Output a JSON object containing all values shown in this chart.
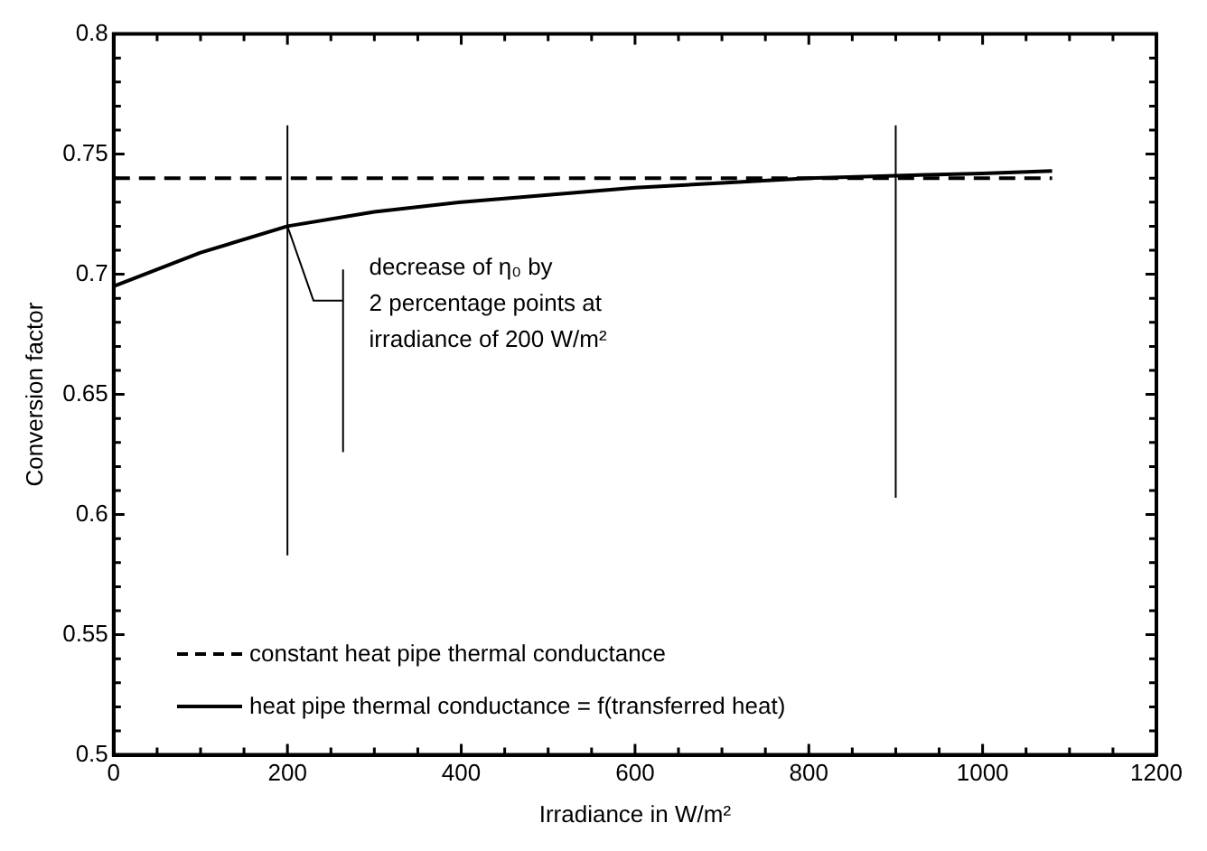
{
  "chart_data": {
    "type": "line",
    "xlabel": "Irradiance in W/m²",
    "ylabel": "Conversion factor",
    "xlim": [
      0,
      1200
    ],
    "xticks": [
      0,
      {
        "value": 50,
        "label": null
      },
      {
        "value": 100,
        "label": null
      },
      {
        "value": 150,
        "label": null
      },
      200,
      {
        "value": 250,
        "label": null
      },
      {
        "value": 300,
        "label": null
      },
      {
        "value": 350,
        "label": null
      },
      400,
      {
        "value": 450,
        "label": null
      },
      {
        "value": 500,
        "label": null
      },
      {
        "value": 550,
        "label": null
      },
      600,
      {
        "value": 650,
        "label": null
      },
      {
        "value": 700,
        "label": null
      },
      {
        "value": 750,
        "label": null
      },
      800,
      {
        "value": 850,
        "label": null
      },
      {
        "value": 900,
        "label": null
      },
      {
        "value": 950,
        "label": null
      },
      1000,
      {
        "value": 1050,
        "label": null
      },
      {
        "value": 1100,
        "label": null
      },
      {
        "value": 1150,
        "label": null
      },
      1200
    ],
    "ylim": [
      0.5,
      0.8
    ],
    "yticks": [
      0.5,
      {
        "value": 0.51,
        "label": null
      },
      {
        "value": 0.52,
        "label": null
      },
      {
        "value": 0.53,
        "label": null
      },
      {
        "value": 0.54,
        "label": null
      },
      0.55,
      {
        "value": 0.56,
        "label": null
      },
      {
        "value": 0.57,
        "label": null
      },
      {
        "value": 0.58,
        "label": null
      },
      {
        "value": 0.59,
        "label": null
      },
      0.6,
      {
        "value": 0.61,
        "label": null
      },
      {
        "value": 0.62,
        "label": null
      },
      {
        "value": 0.63,
        "label": null
      },
      {
        "value": 0.64,
        "label": null
      },
      0.65,
      {
        "value": 0.66,
        "label": null
      },
      {
        "value": 0.67,
        "label": null
      },
      {
        "value": 0.68,
        "label": null
      },
      {
        "value": 0.69,
        "label": null
      },
      0.7,
      {
        "value": 0.71,
        "label": null
      },
      {
        "value": 0.72,
        "label": null
      },
      {
        "value": 0.73,
        "label": null
      },
      {
        "value": 0.74,
        "label": null
      },
      0.75,
      {
        "value": 0.76,
        "label": null
      },
      {
        "value": 0.77,
        "label": null
      },
      {
        "value": 0.78,
        "label": null
      },
      {
        "value": 0.79,
        "label": null
      },
      0.8
    ],
    "grid": false,
    "legend": "bottom left",
    "marker": "none",
    "series": [
      {
        "name": "constant heat pipe thermal conductance",
        "color": "#000000",
        "line_style": "dashed",
        "x": [
          0,
          1080
        ],
        "values": [
          0.74,
          0.74
        ]
      },
      {
        "name": "heat pipe thermal conductance = f(transferred heat)",
        "color": "#000000",
        "line_style": "solid",
        "x": [
          0,
          100,
          200,
          300,
          400,
          500,
          600,
          700,
          800,
          900,
          1000,
          1080
        ],
        "values": [
          0.695,
          0.709,
          0.72,
          0.726,
          0.73,
          0.733,
          0.736,
          0.738,
          0.74,
          0.741,
          0.742,
          0.743
        ]
      },
      {
        "color": "#000000",
        "line_style": "solid",
        "x": [
          200,
          200
        ],
        "values": [
          0.583,
          0.762
        ]
      },
      {
        "color": "#000000",
        "line_style": "solid",
        "x": [
          900,
          900
        ],
        "values": [
          0.607,
          0.762
        ]
      },
      {
        "color": "#000000",
        "line_style": "solid",
        "x": [
          200,
          230,
          264
        ],
        "values": [
          0.72,
          0.689,
          0.689
        ]
      },
      {
        "color": "#000000",
        "line_style": "solid",
        "x": [
          264,
          264
        ],
        "values": [
          0.626,
          0.702
        ]
      }
    ],
    "annotations": [
      "decrease of η₀ by\n2 percentage points at\nirradiance of 200 W/m²"
    ]
  }
}
